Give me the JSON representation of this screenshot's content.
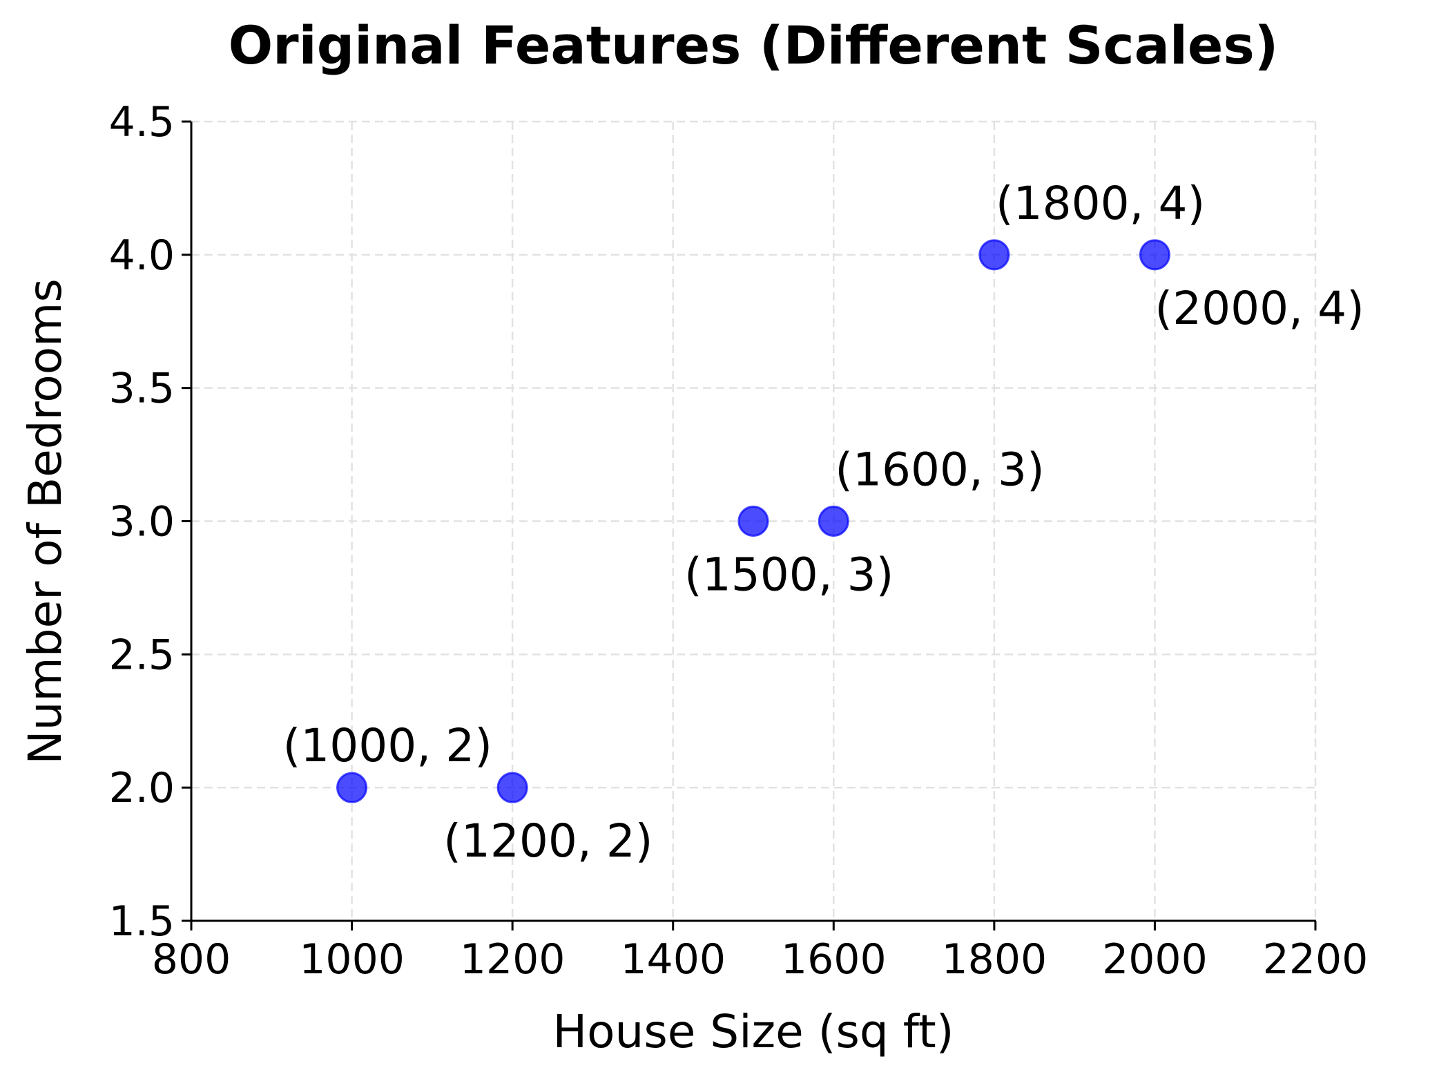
{
  "chart_data": {
    "type": "scatter",
    "title": "Original Features (Different Scales)",
    "xlabel": "House Size (sq ft)",
    "ylabel": "Number of Bedrooms",
    "xlim": [
      800,
      2200
    ],
    "ylim": [
      1.5,
      4.5
    ],
    "xticks": [
      800,
      1000,
      1200,
      1400,
      1600,
      1800,
      2000,
      2200
    ],
    "xtick_labels": [
      "800",
      "1000",
      "1200",
      "1400",
      "1600",
      "1800",
      "2000",
      "2200"
    ],
    "yticks": [
      1.5,
      2.0,
      2.5,
      3.0,
      3.5,
      4.0,
      4.5
    ],
    "ytick_labels": [
      "1.5",
      "2.0",
      "2.5",
      "3.0",
      "3.5",
      "4.0",
      "4.5"
    ],
    "grid": true,
    "legend": null,
    "point_color": "#0000ff",
    "point_alpha": 0.7,
    "points": [
      {
        "x": 1000,
        "y": 2,
        "label": "(1000, 2)",
        "label_pos": "above"
      },
      {
        "x": 1200,
        "y": 2,
        "label": "(1200, 2)",
        "label_pos": "below"
      },
      {
        "x": 1500,
        "y": 3,
        "label": "(1500, 3)",
        "label_pos": "below"
      },
      {
        "x": 1600,
        "y": 3,
        "label": "(1600, 3)",
        "label_pos": "above"
      },
      {
        "x": 1800,
        "y": 4,
        "label": "(1800, 4)",
        "label_pos": "above"
      },
      {
        "x": 2000,
        "y": 4,
        "label": "(2000, 4)",
        "label_pos": "below"
      }
    ]
  }
}
